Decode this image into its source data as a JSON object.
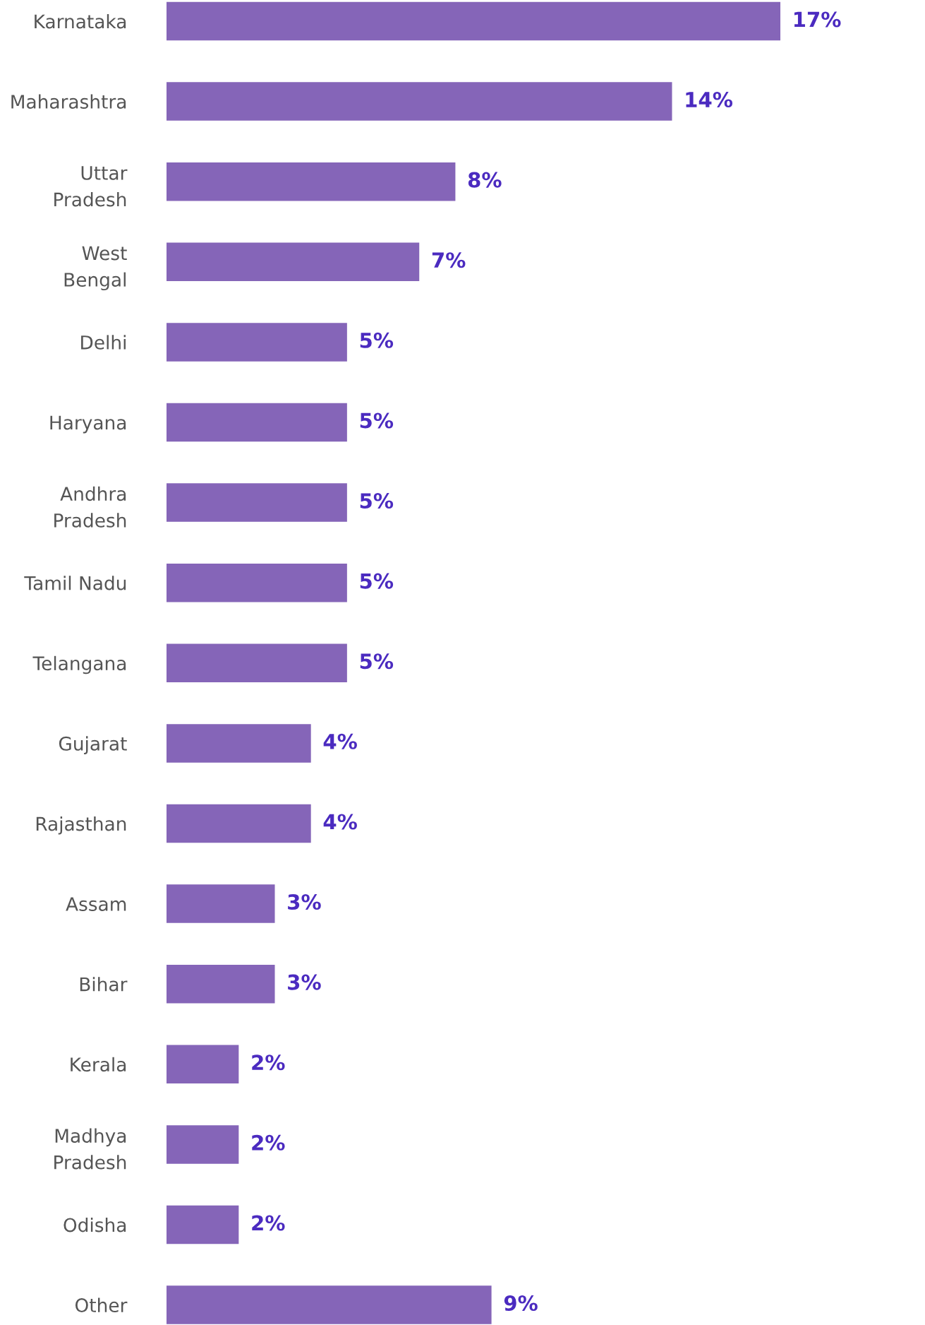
{
  "chart_data": {
    "type": "bar",
    "orientation": "horizontal",
    "grid": false,
    "legend": false,
    "value_labels": [
      "17%",
      "14%",
      "8%",
      "7%",
      "5%",
      "5%",
      "5%",
      "5%",
      "5%",
      "4%",
      "4%",
      "3%",
      "3%",
      "2%",
      "2%",
      "2%",
      "9%"
    ],
    "categories": [
      "Karnataka",
      "Maharashtra",
      "Uttar Pradesh",
      "West Bengal",
      "Delhi",
      "Haryana",
      "Andhra Pradesh",
      "Tamil Nadu",
      "Telangana",
      "Gujarat",
      "Rajasthan",
      "Assam",
      "Bihar",
      "Kerala",
      "Madhya Pradesh",
      "Odisha",
      "Other"
    ],
    "values": [
      17,
      14,
      8,
      7,
      5,
      5,
      5,
      5,
      5,
      4,
      4,
      3,
      3,
      2,
      2,
      2,
      9
    ],
    "color": "#8565b8"
  }
}
